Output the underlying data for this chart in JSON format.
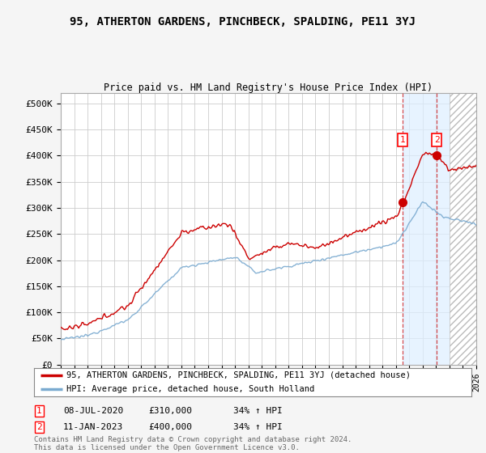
{
  "title": "95, ATHERTON GARDENS, PINCHBECK, SPALDING, PE11 3YJ",
  "subtitle": "Price paid vs. HM Land Registry's House Price Index (HPI)",
  "ylim": [
    0,
    520000
  ],
  "yticks": [
    0,
    50000,
    100000,
    150000,
    200000,
    250000,
    300000,
    350000,
    400000,
    450000,
    500000
  ],
  "ytick_labels": [
    "£0",
    "£50K",
    "£100K",
    "£150K",
    "£200K",
    "£250K",
    "£300K",
    "£350K",
    "£400K",
    "£450K",
    "£500K"
  ],
  "legend_entries": [
    "95, ATHERTON GARDENS, PINCHBECK, SPALDING, PE11 3YJ (detached house)",
    "HPI: Average price, detached house, South Holland"
  ],
  "annotation1": {
    "label": "1",
    "date": "08-JUL-2020",
    "price": "£310,000",
    "change": "34% ↑ HPI"
  },
  "annotation2": {
    "label": "2",
    "date": "11-JAN-2023",
    "price": "£400,000",
    "change": "34% ↑ HPI"
  },
  "footnote": "Contains HM Land Registry data © Crown copyright and database right 2024.\nThis data is licensed under the Open Government Licence v3.0.",
  "line1_color": "#cc0000",
  "line2_color": "#7aaad0",
  "shade_fill_color": "#ddeeff",
  "hatch_color": "#bbbbbb",
  "grid_color": "#cccccc",
  "bg_color": "#f5f5f5",
  "plot_bg": "#ffffff",
  "ann1_year": 2020.5,
  "ann1_y": 310000,
  "ann2_year": 2023.05,
  "ann2_y": 400000,
  "shade_start": 2020.5,
  "shade_end": 2024.0,
  "hatch_start": 2024.0,
  "xlim_start": 1995,
  "xlim_end": 2026
}
